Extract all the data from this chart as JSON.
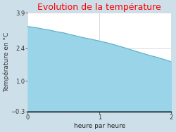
{
  "title": "Evolution de la température",
  "title_color": "#ff0000",
  "xlabel": "heure par heure",
  "ylabel": "Température en °C",
  "outer_background": "#cde0ea",
  "plot_background": "#ffffff",
  "fill_color": "#99d4e8",
  "line_color": "#5ab0c8",
  "ylim": [
    -0.3,
    3.9
  ],
  "xlim": [
    0,
    2
  ],
  "yticks": [
    -0.3,
    1.0,
    2.4,
    3.9
  ],
  "xticks": [
    0,
    1,
    2
  ],
  "x_data": [
    0.0,
    0.1,
    0.2,
    0.3,
    0.4,
    0.5,
    0.6,
    0.7,
    0.8,
    0.9,
    1.0,
    1.1,
    1.2,
    1.3,
    1.4,
    1.5,
    1.6,
    1.7,
    1.8,
    1.9,
    2.0
  ],
  "y_data": [
    3.32,
    3.28,
    3.22,
    3.17,
    3.1,
    3.05,
    2.97,
    2.9,
    2.83,
    2.77,
    2.7,
    2.63,
    2.55,
    2.46,
    2.37,
    2.27,
    2.18,
    2.09,
    2.01,
    1.92,
    1.82
  ],
  "baseline": -0.3,
  "figsize": [
    2.5,
    1.88
  ],
  "dpi": 100,
  "title_fontsize": 9,
  "label_fontsize": 6.5,
  "tick_fontsize": 6
}
